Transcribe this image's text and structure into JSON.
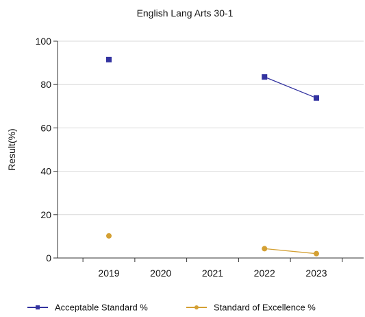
{
  "chart_data": {
    "type": "line",
    "title": "English Lang Arts 30-1",
    "xlabel": "",
    "ylabel": "Result(%)",
    "categories": [
      "2019",
      "2020",
      "2021",
      "2022",
      "2023"
    ],
    "ylim": [
      0,
      100
    ],
    "yticks": [
      "0",
      "20",
      "40",
      "60",
      "80",
      "100"
    ],
    "grid": true,
    "legend_position": "bottom",
    "series": [
      {
        "name": "Acceptable Standard %",
        "color": "#3333a0",
        "marker": "square",
        "values": [
          91.5,
          null,
          null,
          83.5,
          73.8
        ]
      },
      {
        "name": "Standard of Excellence %",
        "color": "#d4a033",
        "marker": "circle",
        "values": [
          10.2,
          null,
          null,
          4.3,
          2.0
        ]
      }
    ]
  }
}
